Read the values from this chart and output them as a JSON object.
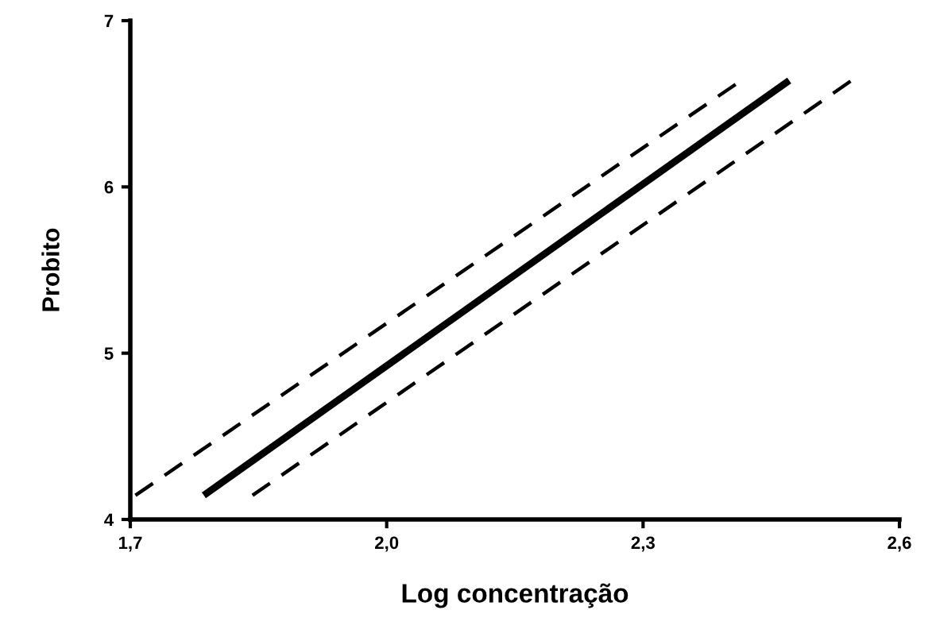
{
  "chart_data": {
    "type": "line",
    "xlabel": "Log concentração",
    "ylabel": "Probito",
    "series": [
      {
        "color": "#000000",
        "x": [
          1.786,
          2.471
        ],
        "values": [
          4.145,
          6.64
        ],
        "line_style": "solid"
      },
      {
        "color": "#000000",
        "x": [
          1.706,
          2.412
        ],
        "values": [
          4.145,
          6.63
        ],
        "line_style": "dashed"
      },
      {
        "color": "#000000",
        "x": [
          1.843,
          2.544
        ],
        "values": [
          4.145,
          6.64
        ],
        "line_style": "dashed"
      }
    ],
    "xlim": [
      1.7,
      2.6
    ],
    "ylim": [
      4,
      7
    ],
    "xticks": [
      {
        "value": 1.7,
        "label": "1,7"
      },
      {
        "value": 2.0,
        "label": "2,0"
      },
      {
        "value": 2.3,
        "label": "2,3"
      },
      {
        "value": 2.6,
        "label": "2,6"
      }
    ],
    "yticks": [
      4,
      5,
      6,
      7
    ],
    "grid": false,
    "legend": false,
    "marker": "none"
  }
}
